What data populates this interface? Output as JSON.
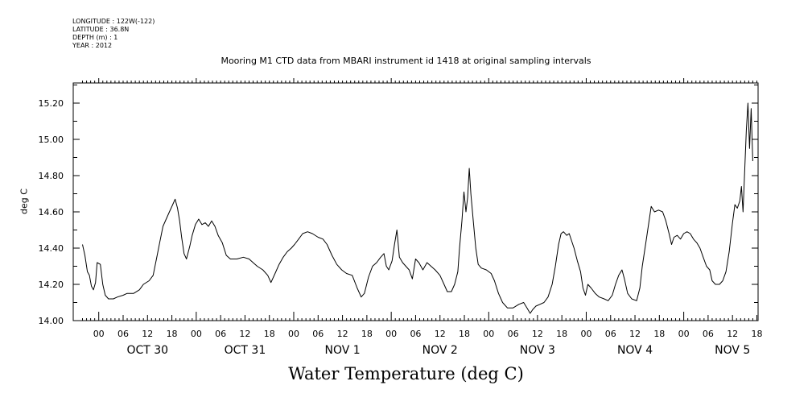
{
  "header": {
    "longitude": "LONGITUDE : 122W(-122)",
    "latitude": "LATITUDE : 36.8N",
    "depth": "DEPTH (m) : 1",
    "year": "YEAR : 2012"
  },
  "chart_data": {
    "type": "line",
    "title": "Mooring M1 CTD data from MBARI instrument id 1418 at original sampling intervals",
    "xlabel": "Water Temperature (deg C)",
    "ylabel": "deg C",
    "ylim": [
      14.0,
      15.3
    ],
    "xlim_hours": [
      -4,
      165
    ],
    "y_ticks": [
      "14.00",
      "14.20",
      "14.40",
      "14.60",
      "14.80",
      "15.00",
      "15.20"
    ],
    "hour_tick_labels": [
      "06",
      "12",
      "18",
      "00"
    ],
    "day_labels": [
      "OCT 30",
      "OCT 31",
      "NOV  1",
      "NOV  2",
      "NOV  3",
      "NOV  4",
      "NOV  5"
    ],
    "x_axis_note": "x values are hours from 00:00 Oct 30 2012",
    "series": [
      {
        "values": [
          [
            -4,
            14.42
          ],
          [
            -3.4,
            14.36
          ],
          [
            -2.8,
            14.27
          ],
          [
            -2.3,
            14.25
          ],
          [
            -1.8,
            14.19
          ],
          [
            -1.3,
            14.17
          ],
          [
            -0.8,
            14.21
          ],
          [
            -0.4,
            14.32
          ],
          [
            0.4,
            14.31
          ],
          [
            1,
            14.2
          ],
          [
            1.6,
            14.14
          ],
          [
            2.4,
            14.12
          ],
          [
            3.6,
            14.12
          ],
          [
            4.6,
            14.13
          ],
          [
            6,
            14.14
          ],
          [
            7,
            14.15
          ],
          [
            8.6,
            14.15
          ],
          [
            10,
            14.17
          ],
          [
            11,
            14.2
          ],
          [
            12.4,
            14.22
          ],
          [
            13.4,
            14.25
          ],
          [
            14.2,
            14.34
          ],
          [
            15,
            14.43
          ],
          [
            15.8,
            14.52
          ],
          [
            16.6,
            14.56
          ],
          [
            17.4,
            14.6
          ],
          [
            18.2,
            14.64
          ],
          [
            18.8,
            14.67
          ],
          [
            19.4,
            14.62
          ],
          [
            19.9,
            14.55
          ],
          [
            20.4,
            14.46
          ],
          [
            21,
            14.37
          ],
          [
            21.6,
            14.34
          ],
          [
            22.4,
            14.41
          ],
          [
            23,
            14.47
          ],
          [
            23.8,
            14.53
          ],
          [
            24.6,
            14.56
          ],
          [
            25.4,
            14.53
          ],
          [
            26.2,
            14.54
          ],
          [
            27,
            14.52
          ],
          [
            27.8,
            14.55
          ],
          [
            28.6,
            14.52
          ],
          [
            29.4,
            14.47
          ],
          [
            30.4,
            14.43
          ],
          [
            31.4,
            14.36
          ],
          [
            32.4,
            14.34
          ],
          [
            34,
            14.34
          ],
          [
            35.6,
            14.35
          ],
          [
            37,
            14.34
          ],
          [
            38,
            14.32
          ],
          [
            39,
            14.3
          ],
          [
            40.4,
            14.28
          ],
          [
            41.6,
            14.25
          ],
          [
            42.4,
            14.21
          ],
          [
            43.4,
            14.26
          ],
          [
            44.4,
            14.31
          ],
          [
            45.4,
            14.35
          ],
          [
            46.4,
            14.38
          ],
          [
            47.4,
            14.4
          ],
          [
            48.2,
            14.42
          ],
          [
            49.2,
            14.45
          ],
          [
            50.2,
            14.48
          ],
          [
            51.4,
            14.49
          ],
          [
            52.6,
            14.48
          ],
          [
            54,
            14.46
          ],
          [
            55.2,
            14.45
          ],
          [
            56.2,
            14.42
          ],
          [
            57.4,
            14.36
          ],
          [
            58.6,
            14.31
          ],
          [
            59.8,
            14.28
          ],
          [
            61,
            14.26
          ],
          [
            62.4,
            14.25
          ],
          [
            63.6,
            14.18
          ],
          [
            64.6,
            14.13
          ],
          [
            65.4,
            14.15
          ],
          [
            66.4,
            14.24
          ],
          [
            67.4,
            14.3
          ],
          [
            68.4,
            14.32
          ],
          [
            69.4,
            14.35
          ],
          [
            70.2,
            14.37
          ],
          [
            70.8,
            14.3
          ],
          [
            71.4,
            14.28
          ],
          [
            72.2,
            14.33
          ],
          [
            72.8,
            14.42
          ],
          [
            73.4,
            14.5
          ],
          [
            74,
            14.35
          ],
          [
            74.8,
            14.32
          ],
          [
            75.6,
            14.3
          ],
          [
            76.4,
            14.28
          ],
          [
            77.2,
            14.23
          ],
          [
            78,
            14.34
          ],
          [
            78.8,
            14.32
          ],
          [
            79.8,
            14.28
          ],
          [
            80.8,
            14.32
          ],
          [
            81.8,
            14.3
          ],
          [
            82.8,
            14.28
          ],
          [
            84,
            14.25
          ],
          [
            85,
            14.2
          ],
          [
            85.8,
            14.16
          ],
          [
            86.8,
            14.16
          ],
          [
            87.6,
            14.2
          ],
          [
            88.4,
            14.27
          ],
          [
            88.8,
            14.4
          ],
          [
            89.4,
            14.55
          ],
          [
            89.9,
            14.71
          ],
          [
            90.4,
            14.6
          ],
          [
            90.8,
            14.68
          ],
          [
            91.2,
            14.84
          ],
          [
            91.6,
            14.7
          ],
          [
            92.2,
            14.55
          ],
          [
            92.8,
            14.4
          ],
          [
            93.4,
            14.31
          ],
          [
            94.2,
            14.29
          ],
          [
            95.4,
            14.28
          ],
          [
            96.6,
            14.26
          ],
          [
            97.4,
            14.22
          ],
          [
            98.4,
            14.15
          ],
          [
            99.4,
            14.1
          ],
          [
            100.6,
            14.07
          ],
          [
            102,
            14.07
          ],
          [
            103.4,
            14.09
          ],
          [
            104.6,
            14.1
          ],
          [
            105.4,
            14.07
          ],
          [
            106.2,
            14.04
          ],
          [
            106.8,
            14.06
          ],
          [
            107.6,
            14.08
          ],
          [
            108.6,
            14.09
          ],
          [
            109.6,
            14.1
          ],
          [
            110.6,
            14.13
          ],
          [
            111.6,
            14.2
          ],
          [
            112.4,
            14.3
          ],
          [
            113.2,
            14.42
          ],
          [
            113.8,
            14.48
          ],
          [
            114.4,
            14.49
          ],
          [
            115.2,
            14.47
          ],
          [
            115.8,
            14.48
          ],
          [
            116.4,
            14.44
          ],
          [
            117,
            14.4
          ],
          [
            117.8,
            14.33
          ],
          [
            118.6,
            14.27
          ],
          [
            119.2,
            14.18
          ],
          [
            119.8,
            14.14
          ],
          [
            120.4,
            14.2
          ],
          [
            121.2,
            14.18
          ],
          [
            122.2,
            14.15
          ],
          [
            123.2,
            14.13
          ],
          [
            124.4,
            14.12
          ],
          [
            125.4,
            14.11
          ],
          [
            126.4,
            14.14
          ],
          [
            127.2,
            14.2
          ],
          [
            128,
            14.25
          ],
          [
            128.8,
            14.28
          ],
          [
            129.4,
            14.23
          ],
          [
            130.2,
            14.15
          ],
          [
            131.2,
            14.12
          ],
          [
            132.4,
            14.11
          ],
          [
            133.2,
            14.18
          ],
          [
            133.8,
            14.3
          ],
          [
            134.6,
            14.42
          ],
          [
            135.4,
            14.54
          ],
          [
            136,
            14.63
          ],
          [
            136.8,
            14.6
          ],
          [
            137.8,
            14.61
          ],
          [
            138.8,
            14.6
          ],
          [
            139.6,
            14.55
          ],
          [
            140.4,
            14.48
          ],
          [
            141,
            14.42
          ],
          [
            141.6,
            14.46
          ],
          [
            142.4,
            14.47
          ],
          [
            143.2,
            14.45
          ],
          [
            144,
            14.48
          ],
          [
            144.8,
            14.49
          ],
          [
            145.6,
            14.48
          ],
          [
            146.4,
            14.45
          ],
          [
            147.2,
            14.43
          ],
          [
            148,
            14.4
          ],
          [
            148.8,
            14.35
          ],
          [
            149.6,
            14.3
          ],
          [
            150.4,
            14.28
          ],
          [
            151,
            14.22
          ],
          [
            151.8,
            14.2
          ],
          [
            152.8,
            14.2
          ],
          [
            153.6,
            14.22
          ],
          [
            154.4,
            14.27
          ],
          [
            155.2,
            14.38
          ],
          [
            156,
            14.54
          ],
          [
            156.6,
            14.64
          ],
          [
            157.2,
            14.62
          ],
          [
            157.8,
            14.66
          ],
          [
            158.2,
            14.74
          ],
          [
            158.6,
            14.6
          ],
          [
            159,
            14.82
          ],
          [
            159.4,
            15.05
          ],
          [
            159.8,
            15.2
          ],
          [
            160.2,
            14.95
          ],
          [
            160.6,
            15.17
          ],
          [
            161,
            14.88
          ]
        ]
      }
    ]
  }
}
